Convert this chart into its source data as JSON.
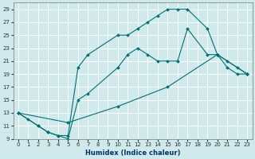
{
  "bg_color": "#d0eaec",
  "grid_color": "#b8d8dc",
  "line_color": "#007070",
  "xlabel": "Humidex (Indice chaleur)",
  "xlim": [
    -0.5,
    23.5
  ],
  "ylim": [
    9,
    30
  ],
  "yticks": [
    9,
    11,
    13,
    15,
    17,
    19,
    21,
    23,
    25,
    27,
    29
  ],
  "xticks": [
    0,
    1,
    2,
    3,
    4,
    5,
    6,
    7,
    8,
    9,
    10,
    11,
    12,
    13,
    14,
    15,
    16,
    17,
    18,
    19,
    20,
    21,
    22,
    23
  ],
  "line1": {
    "x": [
      0,
      1,
      2,
      3,
      4,
      5,
      6,
      7,
      10,
      11,
      12,
      13,
      14,
      15,
      16,
      17,
      19,
      20,
      21,
      22,
      23
    ],
    "y": [
      13,
      12,
      11,
      10,
      9.5,
      9.5,
      20,
      22,
      25,
      25,
      26,
      27,
      28,
      29,
      29,
      29,
      26,
      22,
      21,
      20,
      19
    ]
  },
  "line2": {
    "x": [
      0,
      2,
      3,
      4,
      5,
      6,
      7,
      10,
      11,
      12,
      13,
      14,
      15,
      16,
      17,
      19,
      20,
      21,
      22,
      23
    ],
    "y": [
      13,
      11,
      10,
      9.5,
      9,
      15,
      16,
      20,
      22,
      23,
      22,
      21,
      21,
      21,
      26,
      22,
      22,
      20,
      19,
      19
    ]
  },
  "line3": {
    "x": [
      0,
      5,
      10,
      15,
      20,
      23
    ],
    "y": [
      13,
      11.5,
      14,
      17,
      22,
      19
    ]
  }
}
